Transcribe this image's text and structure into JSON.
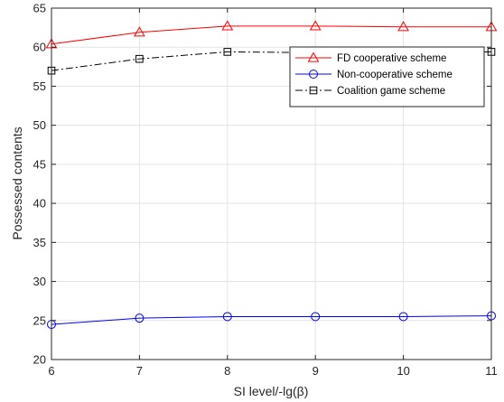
{
  "chart_data": {
    "type": "line",
    "title": "",
    "xlabel": "SI level/-lg(β)",
    "ylabel": "Possessed contents",
    "xlim": [
      6,
      11
    ],
    "ylim": [
      20,
      65
    ],
    "xticks": [
      6,
      7,
      8,
      9,
      10,
      11
    ],
    "yticks": [
      20,
      25,
      30,
      35,
      40,
      45,
      50,
      55,
      60,
      65
    ],
    "grid": true,
    "legend_position": "top-right",
    "x": [
      6,
      7,
      8,
      9,
      10,
      11
    ],
    "series": [
      {
        "name": "FD cooperative scheme",
        "values": [
          60.4,
          61.9,
          62.7,
          62.7,
          62.6,
          62.6
        ],
        "color": "#ff0000",
        "marker": "triangle",
        "line_style": "solid"
      },
      {
        "name": "Non-cooperative scheme",
        "values": [
          24.5,
          25.3,
          25.5,
          25.5,
          25.5,
          25.6
        ],
        "color": "#0000ff",
        "marker": "circle",
        "line_style": "solid"
      },
      {
        "name": "Coalition game scheme",
        "values": [
          57.0,
          58.5,
          59.4,
          59.3,
          59.2,
          59.4
        ],
        "color": "#000000",
        "marker": "square",
        "line_style": "dashdot"
      }
    ]
  }
}
